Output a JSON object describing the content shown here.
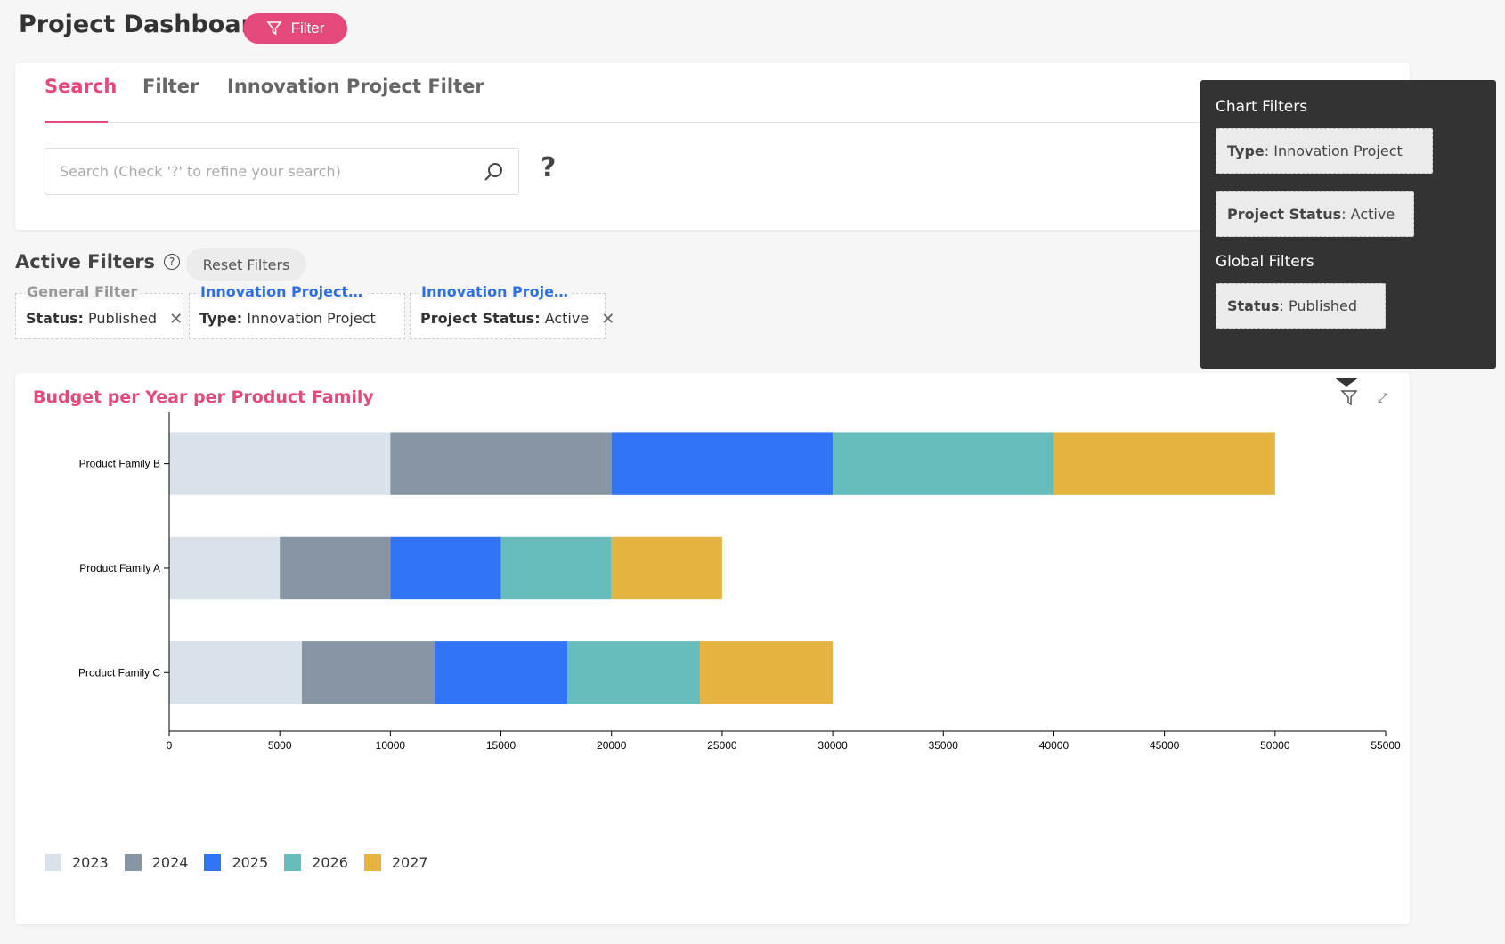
{
  "header": {
    "title": "Project Dashboard",
    "filter_button": "Filter"
  },
  "tabs": [
    {
      "label": "Search"
    },
    {
      "label": "Filter"
    },
    {
      "label": "Innovation Project Filter"
    }
  ],
  "search": {
    "placeholder": "Search (Check '?' to refine your search)",
    "value": "",
    "help": "?"
  },
  "active_filters": {
    "title": "Active Filters",
    "help": "?",
    "reset": "Reset Filters",
    "chips": [
      {
        "group": "General Filter",
        "key": "Status",
        "value": "Published",
        "removable": true,
        "group_color": "#999999"
      },
      {
        "group": "Innovation Project Fil...",
        "key": "Type",
        "value": "Innovation Project",
        "removable": false,
        "group_color": "#2f6fe4"
      },
      {
        "group": "Innovation Project...",
        "key": "Project Status",
        "value": "Active",
        "removable": true,
        "group_color": "#2f6fe4"
      }
    ]
  },
  "popup": {
    "chart_title": "Chart Filters",
    "chart_filters": [
      {
        "key": "Type",
        "value": "Innovation Project"
      },
      {
        "key": "Project Status",
        "value": "Active"
      }
    ],
    "global_title": "Global Filters",
    "global_filters": [
      {
        "key": "Status",
        "value": "Published"
      }
    ]
  },
  "colors": {
    "accent": "#e5497a"
  },
  "chart_data": {
    "type": "bar",
    "orientation": "horizontal",
    "stacked": true,
    "title": "Budget per Year per Product Family",
    "categories": [
      "Product Family B",
      "Product Family A",
      "Product Family C"
    ],
    "series": [
      {
        "name": "2023",
        "color": "#d9e1e9",
        "values": [
          10000,
          5000,
          6000
        ]
      },
      {
        "name": "2024",
        "color": "#8795a5",
        "values": [
          10000,
          5000,
          6000
        ]
      },
      {
        "name": "2025",
        "color": "#3174f6",
        "values": [
          10000,
          5000,
          6000
        ]
      },
      {
        "name": "2026",
        "color": "#66bdbb",
        "values": [
          10000,
          5000,
          6000
        ]
      },
      {
        "name": "2027",
        "color": "#e6b341",
        "values": [
          10000,
          5000,
          6000
        ]
      }
    ],
    "xlim": [
      0,
      55000
    ],
    "xticks": [
      0,
      5000,
      10000,
      15000,
      20000,
      25000,
      30000,
      35000,
      40000,
      45000,
      50000,
      55000
    ],
    "legend_position": "bottom-left"
  }
}
